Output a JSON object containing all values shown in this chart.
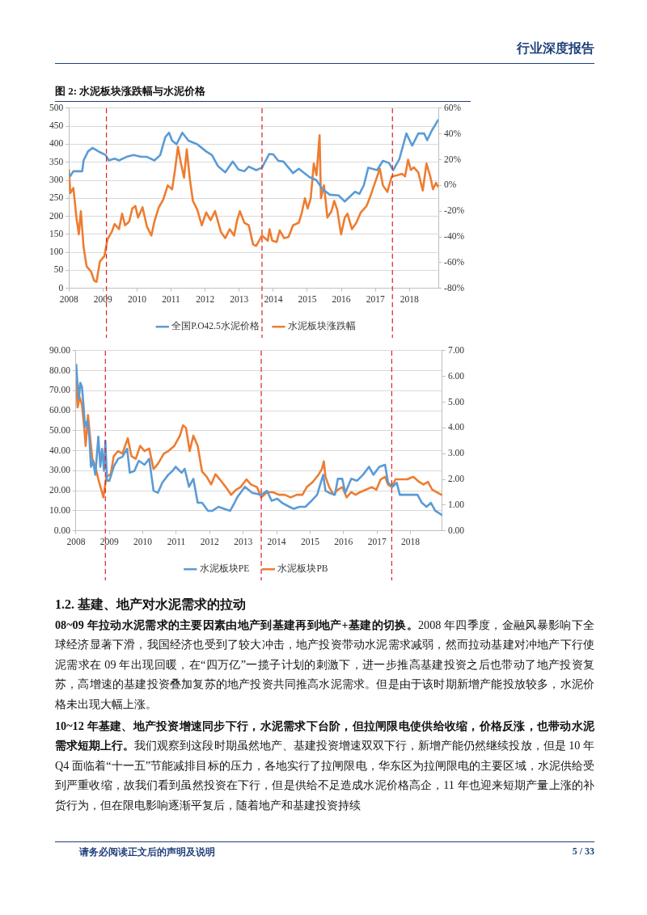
{
  "chart_data": [
    {
      "type": "line",
      "title": "图 2: 水泥板块涨跌幅与水泥价格",
      "annotations": [
        "行业深度报告"
      ],
      "xlim": [
        2008,
        2018.85
      ],
      "xticks": [
        2008,
        2009,
        2010,
        2011,
        2012,
        2013,
        2014,
        2015,
        2016,
        2017,
        2018
      ],
      "ylim": [
        0,
        500
      ],
      "yticks": [
        0,
        50,
        100,
        150,
        200,
        250,
        300,
        350,
        400,
        450,
        500
      ],
      "y2lim": [
        -80,
        60
      ],
      "y2ticks": [
        {
          "value": -80,
          "label": "-80%"
        },
        {
          "value": -60,
          "label": "-60%"
        },
        {
          "value": -40,
          "label": "-40%"
        },
        {
          "value": -20,
          "label": "-20%"
        },
        {
          "value": 0,
          "label": "0%"
        },
        {
          "value": 20,
          "label": "20%"
        },
        {
          "value": 40,
          "label": "40%"
        },
        {
          "value": 60,
          "label": "60%"
        }
      ],
      "grid": "y",
      "legend": "bottom",
      "ref_lines": [
        {
          "axis": "x",
          "value": 2009.1,
          "color": "#e02020",
          "line_style": "dashed"
        },
        {
          "axis": "x",
          "value": 2013.67,
          "color": "#e02020",
          "line_style": "dashed"
        },
        {
          "axis": "x",
          "value": 2017.5,
          "color": "#e02020",
          "line_style": "dashed"
        }
      ],
      "series": [
        {
          "name": "全国P.O42.5水泥价格",
          "color": "#5b9bd5",
          "axis": "y",
          "x": [
            2008,
            2008.04,
            2008.13,
            2008.39,
            2008.43,
            2008.56,
            2008.69,
            2008.91,
            2009.08,
            2009.17,
            2009.34,
            2009.47,
            2009.69,
            2009.9,
            2010.12,
            2010.29,
            2010.51,
            2010.68,
            2010.83,
            2010.94,
            2011.03,
            2011.16,
            2011.33,
            2011.51,
            2011.77,
            2012.03,
            2012.2,
            2012.37,
            2012.59,
            2012.81,
            2012.98,
            2013.15,
            2013.28,
            2013.5,
            2013.67,
            2013.88,
            2014.0,
            2014.15,
            2014.3,
            2014.58,
            2014.75,
            2015.06,
            2015.27,
            2015.45,
            2015.66,
            2015.92,
            2016.1,
            2016.4,
            2016.53,
            2016.66,
            2016.79,
            2017.05,
            2017.22,
            2017.4,
            2017.52,
            2017.7,
            2017.91,
            2018.08,
            2018.26,
            2018.43,
            2018.52,
            2018.65,
            2018.84
          ],
          "values": [
            318,
            312,
            325,
            325,
            355,
            380,
            390,
            378,
            370,
            355,
            360,
            355,
            365,
            370,
            365,
            365,
            355,
            370,
            420,
            432,
            410,
            400,
            432,
            410,
            400,
            380,
            370,
            340,
            322,
            352,
            330,
            325,
            338,
            328,
            335,
            373,
            372,
            354,
            352,
            320,
            332,
            309,
            300,
            275,
            260,
            258,
            241,
            268,
            262,
            286,
            335,
            328,
            354,
            348,
            328,
            358,
            430,
            396,
            430,
            430,
            411,
            437,
            467
          ]
        },
        {
          "name": "水泥板块涨跌幅",
          "color": "#ed7d31",
          "axis": "y2",
          "x": [
            2008,
            2008.04,
            2008.13,
            2008.22,
            2008.29,
            2008.35,
            2008.43,
            2008.52,
            2008.65,
            2008.74,
            2008.81,
            2008.91,
            2009.04,
            2009.13,
            2009.26,
            2009.34,
            2009.47,
            2009.56,
            2009.65,
            2009.77,
            2009.86,
            2009.95,
            2010.03,
            2010.16,
            2010.29,
            2010.42,
            2010.51,
            2010.64,
            2010.77,
            2010.9,
            2011.03,
            2011.12,
            2011.2,
            2011.29,
            2011.38,
            2011.46,
            2011.55,
            2011.64,
            2011.77,
            2011.9,
            2012.03,
            2012.16,
            2012.29,
            2012.46,
            2012.59,
            2012.72,
            2012.85,
            2012.94,
            2013.02,
            2013.15,
            2013.28,
            2013.41,
            2013.5,
            2013.67,
            2013.84,
            2013.89,
            2013.97,
            2014.1,
            2014.19,
            2014.32,
            2014.45,
            2014.58,
            2014.75,
            2014.84,
            2014.93,
            2015.01,
            2015.1,
            2015.19,
            2015.27,
            2015.36,
            2015.4,
            2015.49,
            2015.59,
            2015.71,
            2015.79,
            2015.88,
            2015.99,
            2016.1,
            2016.18,
            2016.31,
            2016.44,
            2016.57,
            2016.74,
            2016.83,
            2016.96,
            2017.13,
            2017.22,
            2017.35,
            2017.48,
            2017.65,
            2017.78,
            2017.87,
            2017.96,
            2018.04,
            2018.13,
            2018.26,
            2018.39,
            2018.5,
            2018.61,
            2018.69,
            2018.78,
            2018.84
          ],
          "values": [
            12,
            -6,
            -2,
            -25,
            -38,
            -20,
            -48,
            -63,
            -67,
            -74,
            -75,
            -59,
            -55,
            -42,
            -36,
            -30,
            -34,
            -22,
            -31,
            -28,
            -18,
            -16,
            -25,
            -17,
            -32,
            -39,
            -28,
            -17,
            -11,
            0,
            -3,
            13,
            30,
            17,
            6,
            28,
            5,
            -12,
            -19,
            -31,
            -21,
            -27,
            -20,
            -36,
            -41,
            -34,
            -39,
            -27,
            -20,
            -29,
            -31,
            -46,
            -47,
            -39,
            -43,
            -34,
            -43,
            -44,
            -35,
            -41,
            -40,
            -31,
            -29,
            -21,
            -10,
            -18,
            -10,
            17,
            8,
            39,
            -10,
            0,
            -25,
            -20,
            -12,
            -19,
            -38,
            -25,
            -22,
            -34,
            -29,
            -21,
            -16,
            -10,
            0,
            13,
            0,
            -5,
            7,
            8,
            9,
            7,
            20,
            12,
            14,
            10,
            -4,
            17,
            7,
            -3,
            2,
            -1
          ]
        }
      ]
    },
    {
      "type": "line",
      "xlim": [
        2008,
        2018.95
      ],
      "xticks": [
        2008,
        2009,
        2010,
        2011,
        2012,
        2013,
        2014,
        2015,
        2016,
        2017,
        2018
      ],
      "ylim": [
        0,
        90
      ],
      "yticks": [
        {
          "value": 0,
          "label": "0.00"
        },
        {
          "value": 10,
          "label": "10.00"
        },
        {
          "value": 20,
          "label": "20.00"
        },
        {
          "value": 30,
          "label": "30.00"
        },
        {
          "value": 40,
          "label": "40.00"
        },
        {
          "value": 50,
          "label": "50.00"
        },
        {
          "value": 60,
          "label": "60.00"
        },
        {
          "value": 70,
          "label": "70.00"
        },
        {
          "value": 80,
          "label": "80.00"
        },
        {
          "value": 90,
          "label": "90.00"
        }
      ],
      "y2lim": [
        0,
        7
      ],
      "y2ticks": [
        {
          "value": 0,
          "label": "0.00"
        },
        {
          "value": 1,
          "label": "1.00"
        },
        {
          "value": 2,
          "label": "2.00"
        },
        {
          "value": 3,
          "label": "3.00"
        },
        {
          "value": 4,
          "label": "4.00"
        },
        {
          "value": 5,
          "label": "5.00"
        },
        {
          "value": 6,
          "label": "6.00"
        },
        {
          "value": 7,
          "label": "7.00"
        }
      ],
      "grid": "y",
      "legend": "bottom",
      "ref_lines": [
        {
          "axis": "x",
          "value": 2008.88,
          "color": "#e02020",
          "line_style": "dashed"
        },
        {
          "axis": "x",
          "value": 2013.54,
          "color": "#e02020",
          "line_style": "dashed"
        },
        {
          "axis": "x",
          "value": 2017.44,
          "color": "#e02020",
          "line_style": "dashed"
        }
      ],
      "series": [
        {
          "name": "水泥板块PE",
          "color": "#5b9bd5",
          "axis": "y",
          "x": [
            2008.01,
            2008.04,
            2008.09,
            2008.13,
            2008.18,
            2008.23,
            2008.27,
            2008.34,
            2008.4,
            2008.45,
            2008.51,
            2008.58,
            2008.67,
            2008.73,
            2008.78,
            2008.84,
            2008.88,
            2008.93,
            2009.0,
            2009.13,
            2009.26,
            2009.39,
            2009.53,
            2009.61,
            2009.75,
            2009.88,
            2010.05,
            2010.19,
            2010.32,
            2010.45,
            2010.58,
            2010.76,
            2010.89,
            2010.98,
            2011.16,
            2011.25,
            2011.38,
            2011.51,
            2011.64,
            2011.77,
            2011.95,
            2012.08,
            2012.26,
            2012.43,
            2012.61,
            2012.74,
            2012.83,
            2012.92,
            2013.05,
            2013.27,
            2013.54,
            2013.71,
            2013.85,
            2014.02,
            2014.16,
            2014.38,
            2014.51,
            2014.68,
            2014.86,
            2015.04,
            2015.21,
            2015.39,
            2015.46,
            2015.57,
            2015.74,
            2015.83,
            2015.96,
            2016.05,
            2016.23,
            2016.4,
            2016.58,
            2016.76,
            2016.89,
            2017.07,
            2017.24,
            2017.33,
            2017.46,
            2017.59,
            2017.68,
            2017.86,
            2018.04,
            2018.21,
            2018.34,
            2018.48,
            2018.61,
            2018.74,
            2018.93
          ],
          "values": [
            83,
            75,
            66,
            74,
            72,
            62,
            52,
            55,
            47,
            32,
            35,
            28,
            47,
            32,
            41,
            30,
            45,
            25,
            25,
            32,
            36,
            37,
            41,
            29,
            30,
            35,
            33,
            36,
            20,
            19,
            24,
            28,
            30,
            32,
            29,
            31,
            22,
            26,
            14,
            14,
            10,
            10,
            12,
            11,
            10,
            14,
            17,
            19,
            22,
            19,
            18,
            20,
            15,
            16,
            14,
            12,
            11,
            12,
            12,
            15,
            18,
            28,
            20,
            19,
            18,
            26,
            26,
            19,
            26,
            25,
            28,
            32,
            28,
            32,
            33,
            24,
            22,
            24,
            18,
            18,
            18,
            18,
            14,
            12,
            14,
            10,
            8
          ]
        },
        {
          "name": "水泥板块PB",
          "color": "#ed7d31",
          "axis": "y2",
          "x": [
            2008.01,
            2008.05,
            2008.11,
            2008.18,
            2008.25,
            2008.29,
            2008.36,
            2008.42,
            2008.49,
            2008.58,
            2008.67,
            2008.78,
            2008.82,
            2008.91,
            2009.04,
            2009.13,
            2009.26,
            2009.39,
            2009.55,
            2009.66,
            2009.79,
            2009.92,
            2010.05,
            2010.19,
            2010.32,
            2010.45,
            2010.63,
            2010.76,
            2010.94,
            2011.11,
            2011.2,
            2011.29,
            2011.4,
            2011.51,
            2011.64,
            2011.77,
            2011.91,
            2012.04,
            2012.17,
            2012.3,
            2012.48,
            2012.64,
            2012.79,
            2012.92,
            2013.1,
            2013.23,
            2013.41,
            2013.54,
            2013.71,
            2013.89,
            2014.07,
            2014.24,
            2014.42,
            2014.6,
            2014.77,
            2014.9,
            2015.08,
            2015.26,
            2015.35,
            2015.41,
            2015.46,
            2015.57,
            2015.7,
            2015.83,
            2015.96,
            2016.09,
            2016.23,
            2016.36,
            2016.49,
            2016.67,
            2016.84,
            2016.98,
            2017.11,
            2017.24,
            2017.33,
            2017.44,
            2017.55,
            2017.73,
            2017.9,
            2018.08,
            2018.26,
            2018.39,
            2018.52,
            2018.65,
            2018.78,
            2018.93
          ],
          "values": [
            5.8,
            4.8,
            5.2,
            4.9,
            4.0,
            3.3,
            4.5,
            3.7,
            2.8,
            2.5,
            2.0,
            1.5,
            1.3,
            2.1,
            2.2,
            2.9,
            3.1,
            3.0,
            3.6,
            2.9,
            2.8,
            3.3,
            3.1,
            3.2,
            2.4,
            2.6,
            3.0,
            3.1,
            3.3,
            3.7,
            4.1,
            4.0,
            3.1,
            3.7,
            3.3,
            2.3,
            2.1,
            1.8,
            2.2,
            2.0,
            1.7,
            1.4,
            1.6,
            1.7,
            2.0,
            1.8,
            1.7,
            1.3,
            1.5,
            1.5,
            1.4,
            1.4,
            1.3,
            1.4,
            1.4,
            1.7,
            1.9,
            2.2,
            2.4,
            2.7,
            2.1,
            1.7,
            1.4,
            1.6,
            1.7,
            1.3,
            1.5,
            1.4,
            1.5,
            1.6,
            1.7,
            1.6,
            2.0,
            2.1,
            1.8,
            1.7,
            2.0,
            2.0,
            2.0,
            2.1,
            1.9,
            1.8,
            1.9,
            1.6,
            1.5,
            1.4
          ]
        }
      ]
    },
    {
      "type": "other",
      "title": "1.2.   基建、地产对水泥需求的拉动",
      "annotations": [
        "08~09 年拉动水泥需求的主要因素由地产到基建再到地产+基建的切换。",
        "2008 年四季度，金融风暴影响下全球经济显著下滑，我国经济也受到了较大冲击，地产投资带动水泥需求减弱，然而拉动基建对冲地产下行使泥需求在 09 年出现回暖，在“四万亿”一揽子计划的刺激下，进一步推高基建投资之后也带动了地产投资复苏，高增速的基建投资叠加复苏的地产投资共同推高水泥需求。但是由于该时期新增产能投放较多，水泥价格未出现大幅上涨。",
        "10~12 年基建、地产投资增速同步下行，水泥需求下台阶，但拉闸限电使供给收缩，价格反涨，也带动水泥需求短期上行。",
        "我们观察到这段时期虽然地产、基建投资增速双双下行，新增产能仍然继续投放，但是 10 年 Q4 面临着“十一五”节能减排目标的压力，各地实行了拉闸限电，华东区为拉闸限电的主要区域，水泥供给受到严重收缩，故我们看到虽然投资在下行，但是供给不足造成水泥价格高企，11 年也迎来短期产量上涨的补货行为，但在限电影响逐渐平复后，随着地产和基建投资持续",
        "请务必阅读正文后的声明及说明",
        "5 / 33"
      ]
    }
  ]
}
